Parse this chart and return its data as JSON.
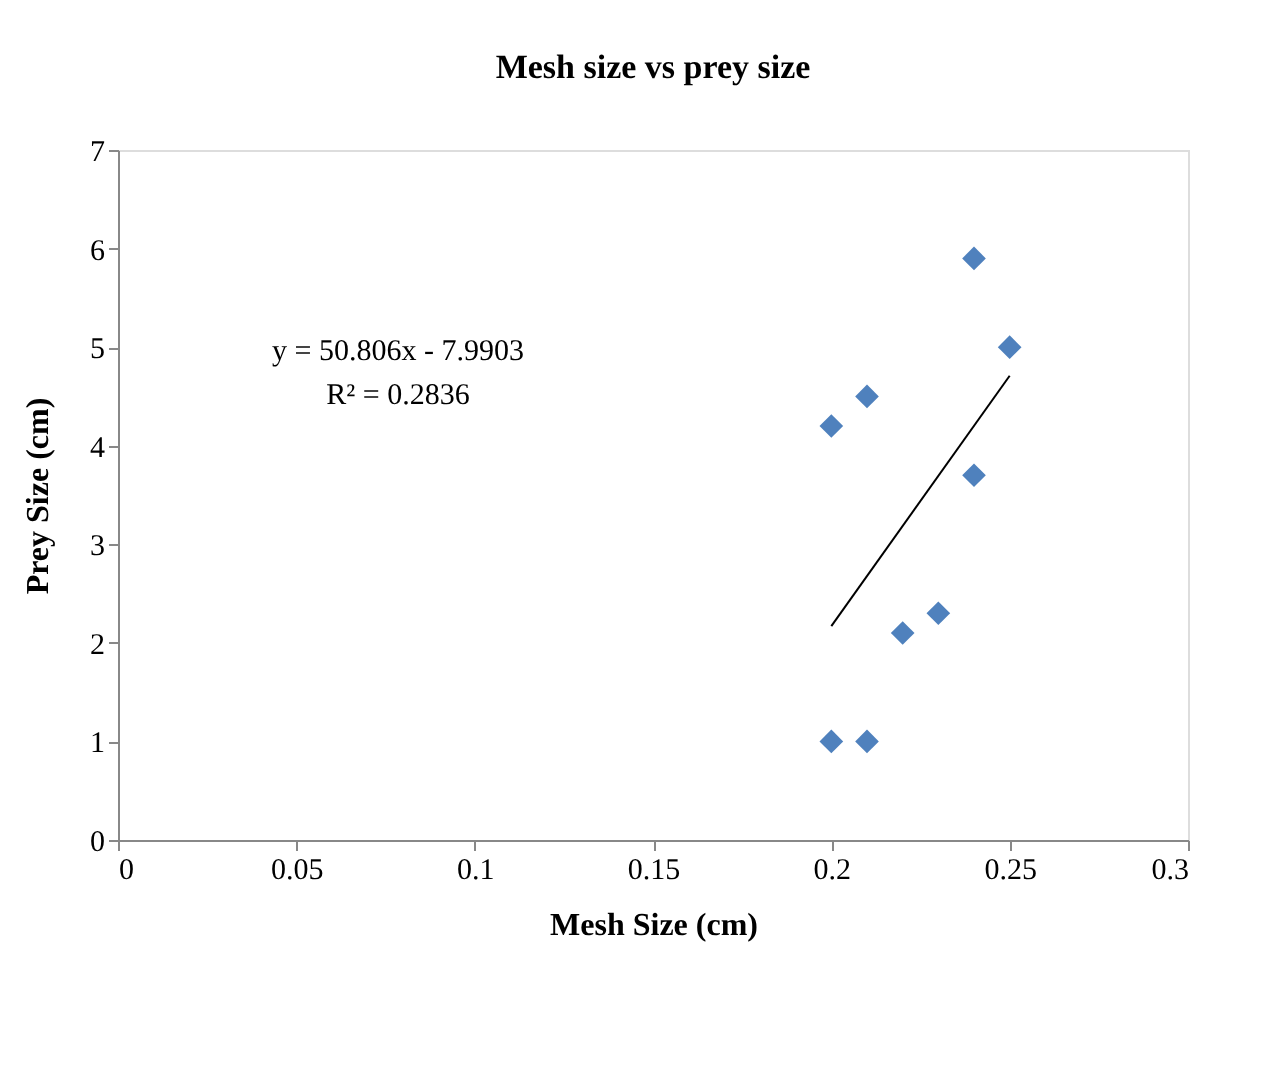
{
  "chart_data": {
    "type": "scatter",
    "title": "Mesh size vs prey size",
    "xlabel": "Mesh Size (cm)",
    "ylabel": "Prey Size (cm)",
    "xlim": [
      0,
      0.3
    ],
    "xticks": [
      0,
      0.05,
      0.1,
      0.15,
      0.2,
      0.25,
      0.3
    ],
    "ylim": [
      0,
      7
    ],
    "yticks": [
      0,
      1,
      2,
      3,
      4,
      5,
      6,
      7
    ],
    "grid": false,
    "series": [
      {
        "marker": "diamond",
        "color": "#4f81bd",
        "x": [
          0.2,
          0.2,
          0.21,
          0.21,
          0.22,
          0.23,
          0.24,
          0.24,
          0.25
        ],
        "values": [
          4.2,
          1.0,
          4.5,
          1.0,
          2.1,
          2.3,
          5.9,
          3.7,
          5.0
        ]
      },
      {
        "type": "line",
        "color": "#000000",
        "line_style": "solid",
        "x": [
          0.2,
          0.25
        ],
        "values": [
          2.17,
          4.71
        ]
      }
    ],
    "annotations": [
      "y = 50.806x - 7.9903",
      "R² = 0.2836"
    ]
  }
}
